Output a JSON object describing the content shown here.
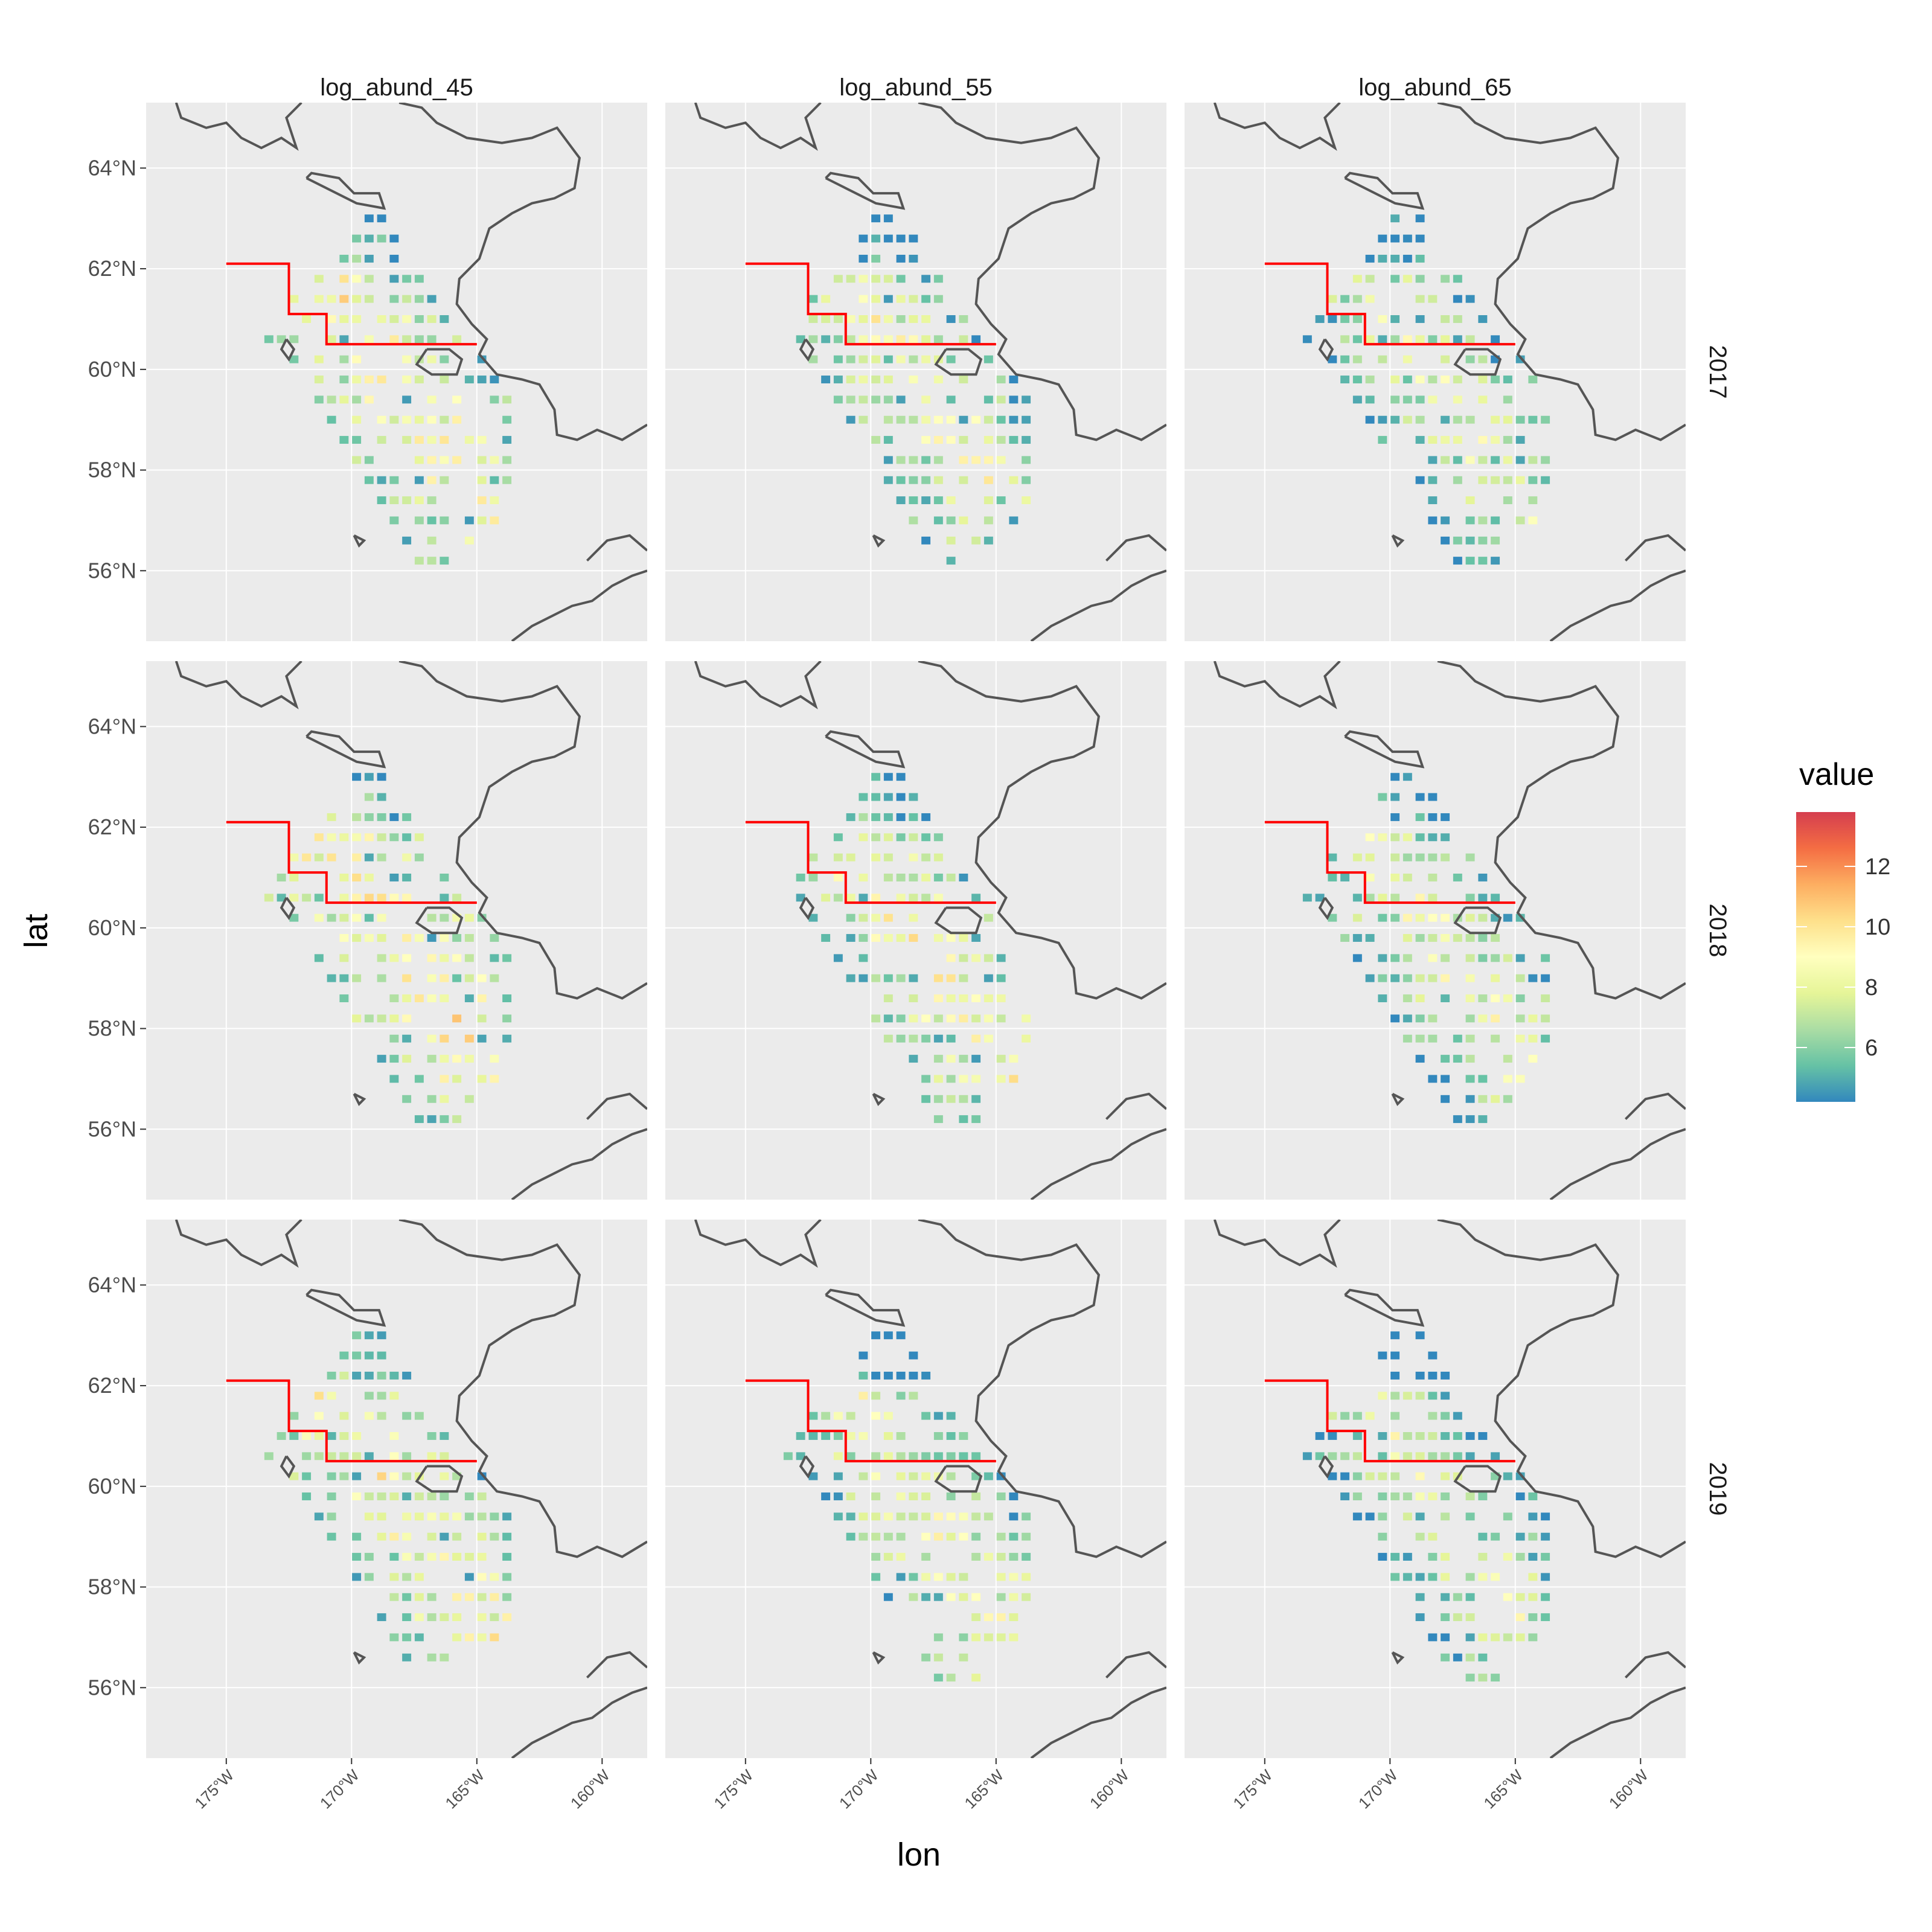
{
  "chart_data": {
    "type": "heatmap",
    "facet_cols": [
      "log_abund_45",
      "log_abund_55",
      "log_abund_65"
    ],
    "facet_rows": [
      "2017",
      "2018",
      "2019"
    ],
    "xlabel": "lon",
    "ylabel": "lat",
    "xlim": [
      -178.2,
      -158.2
    ],
    "ylim": [
      54.6,
      65.3
    ],
    "x_ticks": [
      {
        "value": -175,
        "label": "175°W"
      },
      {
        "value": -170,
        "label": "170°W"
      },
      {
        "value": -165,
        "label": "165°W"
      },
      {
        "value": -160,
        "label": "160°W"
      }
    ],
    "y_ticks": [
      {
        "value": 56,
        "label": "56°N"
      },
      {
        "value": 58,
        "label": "58°N"
      },
      {
        "value": 60,
        "label": "60°N"
      },
      {
        "value": 62,
        "label": "62°N"
      },
      {
        "value": 64,
        "label": "64°N"
      }
    ],
    "legend": {
      "title": "value",
      "min": 4.2,
      "max": 13.8,
      "breaks": [
        6,
        8,
        10,
        12
      ],
      "palette": [
        "#3288bd",
        "#66c2a5",
        "#abdda4",
        "#e6f598",
        "#ffffbf",
        "#fee08b",
        "#fdae61",
        "#f46d43",
        "#d53e4f"
      ]
    },
    "colors": {
      "panel_bg": "#ebebeb",
      "coast": "#555555",
      "boundary": "#ff0000"
    },
    "boundary_line": [
      [
        -175,
        62.1
      ],
      [
        -172.5,
        62.1
      ],
      [
        -172.5,
        61.1
      ],
      [
        -171,
        61.1
      ],
      [
        -171,
        60.5
      ],
      [
        -165,
        60.5
      ]
    ],
    "cell_size": {
      "lon": 0.5,
      "lat": 0.25
    }
  }
}
